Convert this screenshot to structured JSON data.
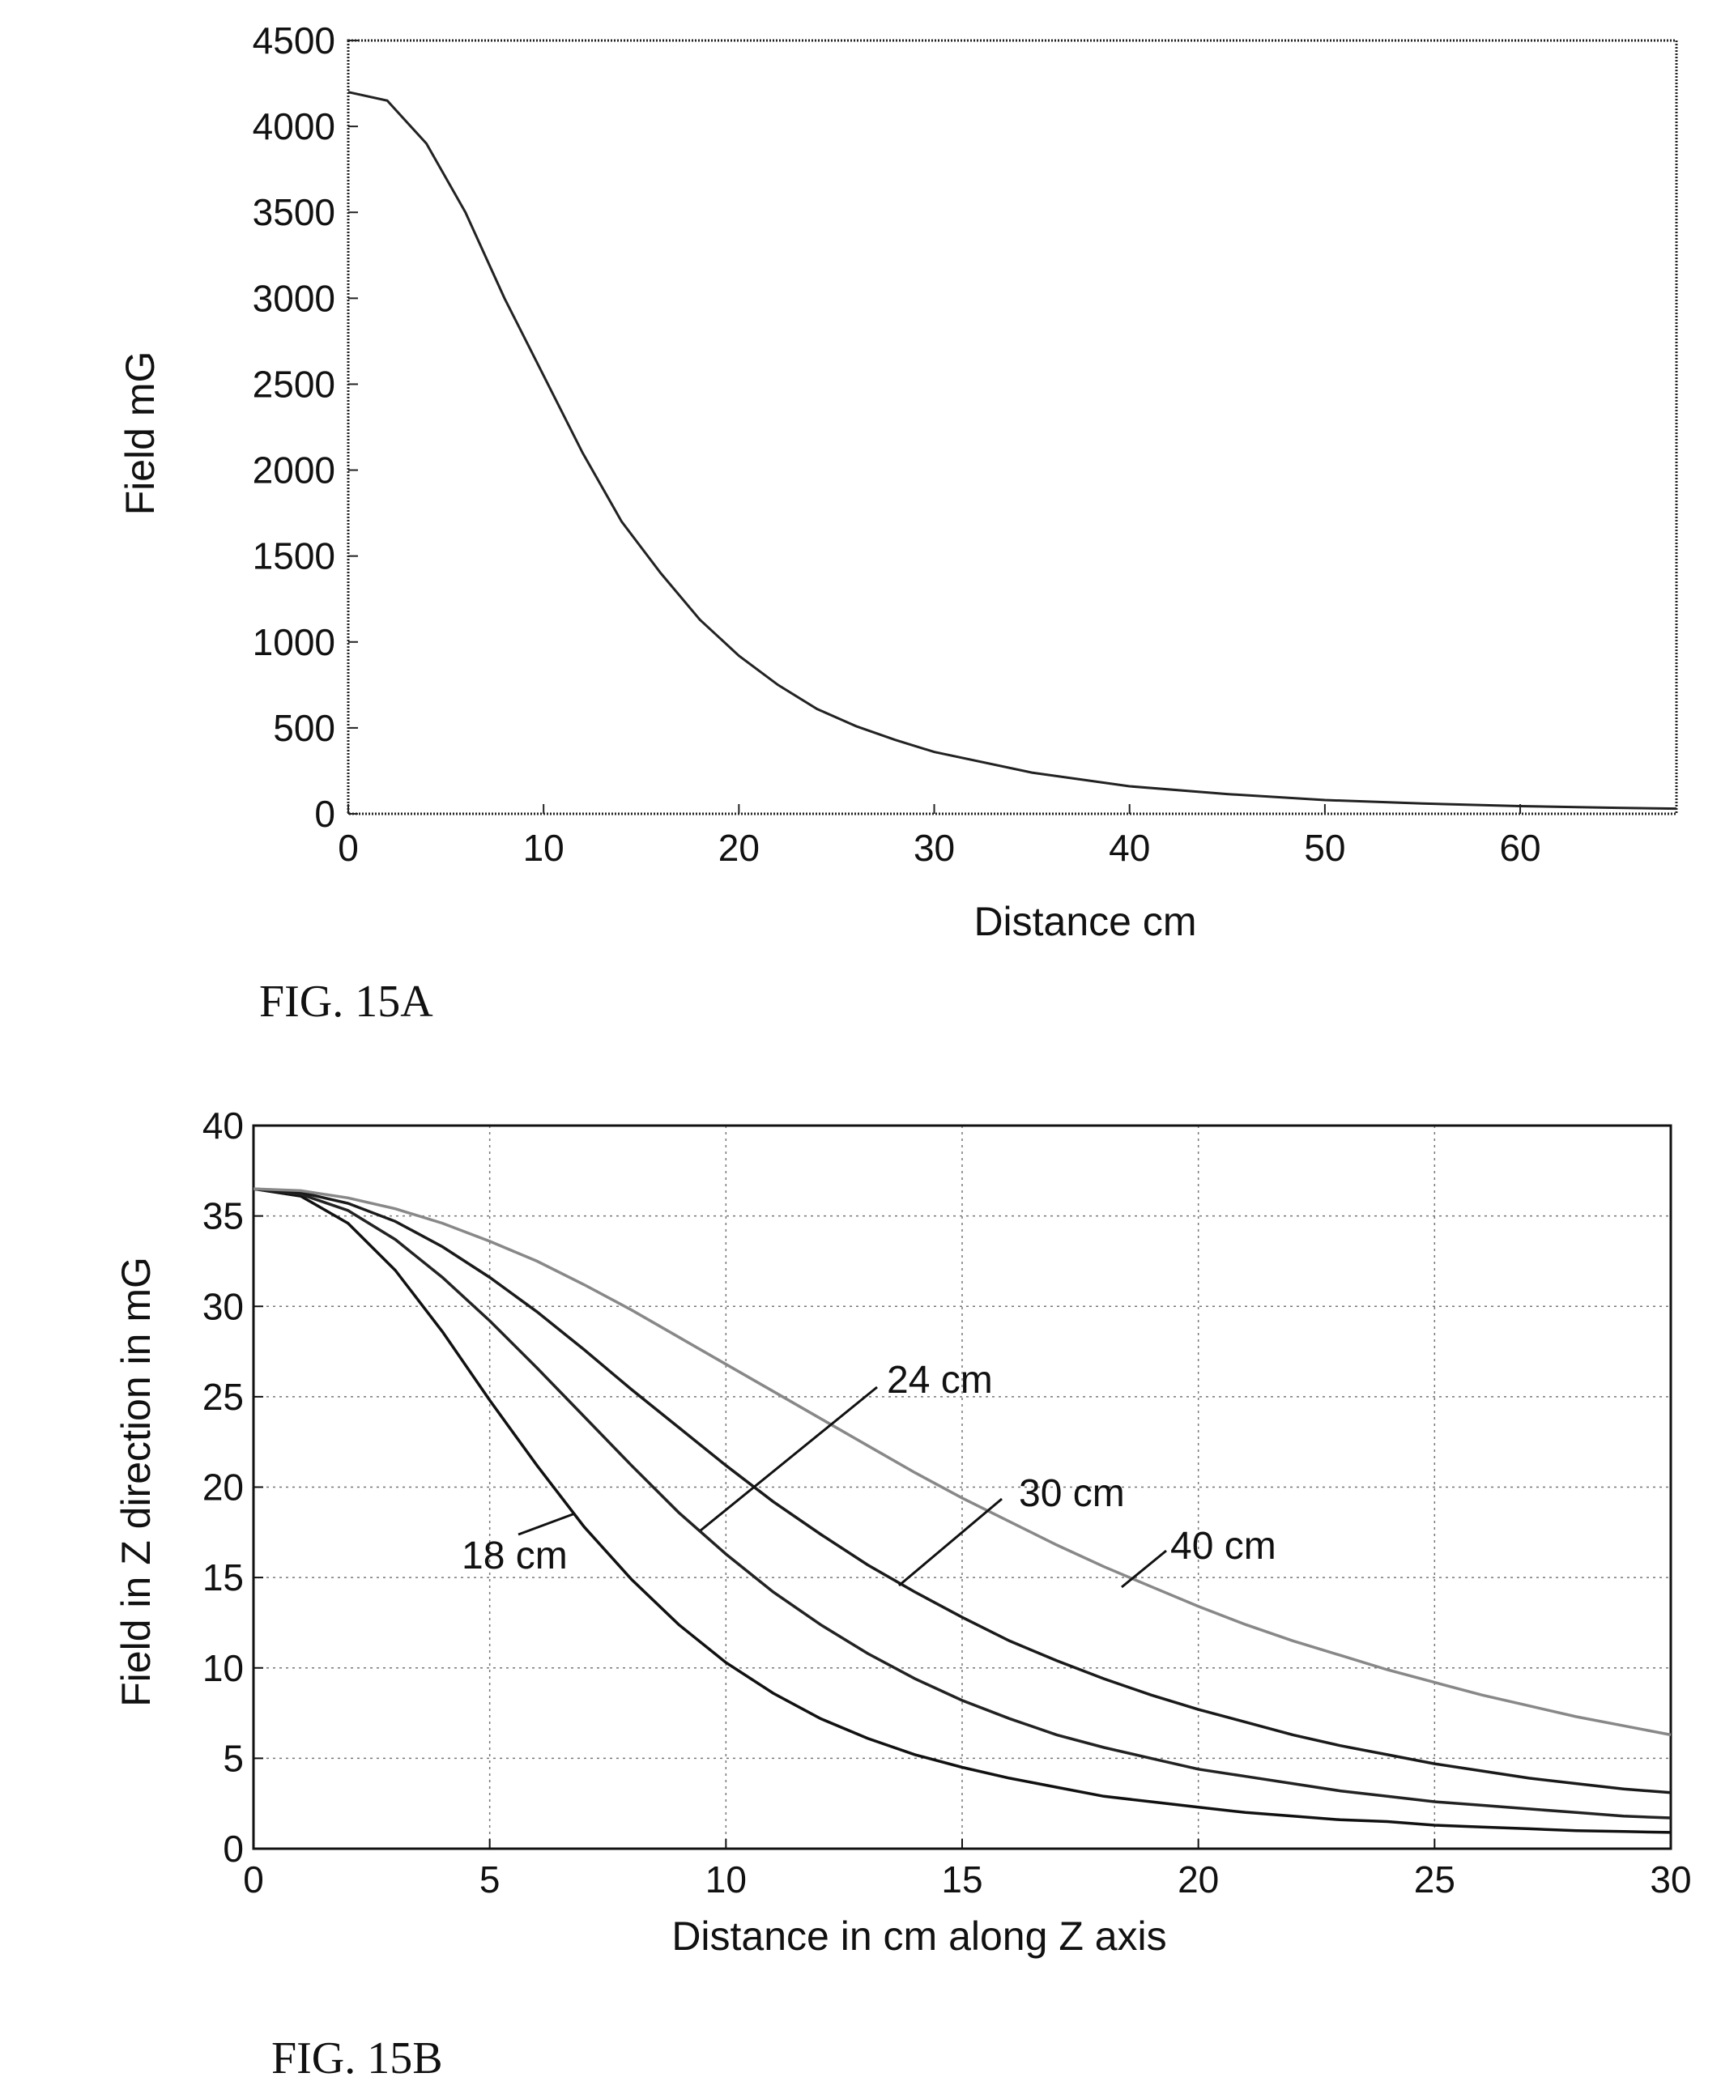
{
  "figures": [
    {
      "caption": "FIG. 15A"
    },
    {
      "caption": "FIG. 15B"
    }
  ],
  "chart_data": [
    {
      "type": "line",
      "xlabel": "Distance cm",
      "ylabel": "Field mG",
      "xlim": [
        0,
        68
      ],
      "ylim": [
        0,
        4500
      ],
      "xticks": [
        0,
        10,
        20,
        30,
        40,
        50,
        60
      ],
      "yticks": [
        0,
        500,
        1000,
        1500,
        2000,
        2500,
        3000,
        3500,
        4000,
        4500
      ],
      "grid": false,
      "series": [
        {
          "x": [
            0,
            2,
            4,
            6,
            8,
            10,
            12,
            14,
            16,
            18,
            20,
            22,
            24,
            26,
            28,
            30,
            35,
            40,
            45,
            50,
            55,
            60,
            65,
            68
          ],
          "y": [
            4200,
            4150,
            3900,
            3500,
            3000,
            2550,
            2100,
            1700,
            1400,
            1130,
            920,
            750,
            610,
            510,
            430,
            360,
            240,
            160,
            115,
            80,
            60,
            45,
            35,
            30
          ]
        }
      ]
    },
    {
      "type": "line",
      "xlabel": "Distance in cm along Z axis",
      "ylabel": "Field in Z direction in mG",
      "xlim": [
        0,
        30
      ],
      "ylim": [
        0,
        40
      ],
      "xticks": [
        0,
        5,
        10,
        15,
        20,
        25,
        30
      ],
      "yticks": [
        0,
        5,
        10,
        15,
        20,
        25,
        30,
        35,
        40
      ],
      "grid": true,
      "x": [
        0,
        1,
        2,
        3,
        4,
        5,
        6,
        7,
        8,
        9,
        10,
        11,
        12,
        13,
        14,
        15,
        16,
        17,
        18,
        19,
        20,
        21,
        22,
        23,
        24,
        25,
        26,
        27,
        28,
        29,
        30
      ],
      "series": [
        {
          "name": "18 cm",
          "values": [
            36.5,
            36.1,
            34.6,
            32.0,
            28.6,
            24.8,
            21.2,
            17.8,
            14.9,
            12.4,
            10.3,
            8.6,
            7.2,
            6.1,
            5.2,
            4.5,
            3.9,
            3.4,
            2.9,
            2.6,
            2.3,
            2.0,
            1.8,
            1.6,
            1.5,
            1.3,
            1.2,
            1.1,
            1.0,
            0.95,
            0.9
          ]
        },
        {
          "name": "24 cm",
          "values": [
            36.5,
            36.2,
            35.3,
            33.7,
            31.6,
            29.2,
            26.6,
            23.9,
            21.2,
            18.6,
            16.3,
            14.2,
            12.4,
            10.8,
            9.4,
            8.2,
            7.2,
            6.3,
            5.6,
            5.0,
            4.4,
            4.0,
            3.6,
            3.2,
            2.9,
            2.6,
            2.4,
            2.2,
            2.0,
            1.8,
            1.7
          ]
        },
        {
          "name": "30 cm",
          "values": [
            36.5,
            36.3,
            35.7,
            34.7,
            33.3,
            31.6,
            29.7,
            27.6,
            25.4,
            23.3,
            21.2,
            19.2,
            17.4,
            15.7,
            14.2,
            12.8,
            11.5,
            10.4,
            9.4,
            8.5,
            7.7,
            7.0,
            6.3,
            5.7,
            5.2,
            4.7,
            4.3,
            3.9,
            3.6,
            3.3,
            3.1
          ]
        },
        {
          "name": "40 cm",
          "values": [
            36.5,
            36.4,
            36.0,
            35.4,
            34.6,
            33.6,
            32.5,
            31.2,
            29.8,
            28.3,
            26.8,
            25.3,
            23.8,
            22.3,
            20.8,
            19.4,
            18.1,
            16.8,
            15.6,
            14.5,
            13.4,
            12.4,
            11.5,
            10.7,
            9.9,
            9.2,
            8.5,
            7.9,
            7.3,
            6.8,
            6.3
          ]
        }
      ]
    }
  ]
}
